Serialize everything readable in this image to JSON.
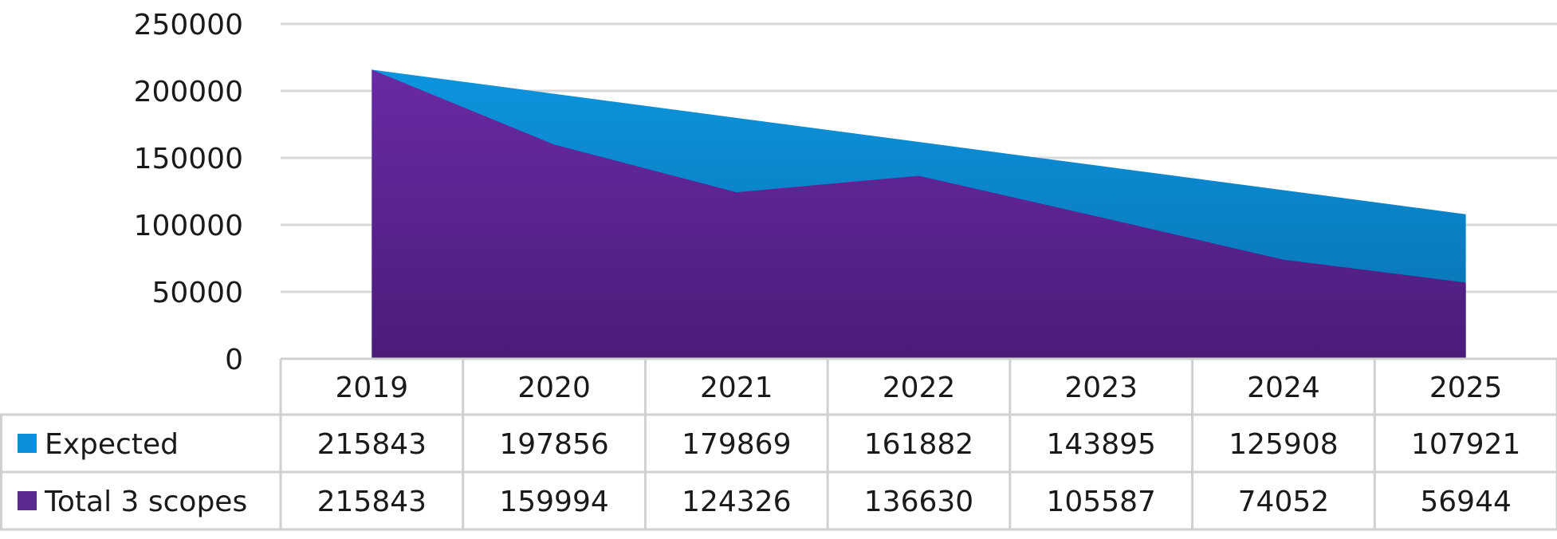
{
  "chart_data": {
    "type": "area",
    "title": "",
    "xlabel": "",
    "ylabel": "",
    "ylim": [
      0,
      250000
    ],
    "yticks": [
      0,
      50000,
      100000,
      150000,
      200000,
      250000
    ],
    "grid": true,
    "legend": "data-table",
    "categories": [
      "2019",
      "2020",
      "2021",
      "2022",
      "2023",
      "2024",
      "2025"
    ],
    "series": [
      {
        "name": "Expected",
        "color": "#0a8fd8",
        "values": [
          215843,
          197856,
          179869,
          161882,
          143895,
          125908,
          107921
        ]
      },
      {
        "name": "Total 3 scopes",
        "color": "#5b2a91",
        "values": [
          215843,
          159994,
          124326,
          136630,
          105587,
          74052,
          56944
        ]
      }
    ]
  }
}
